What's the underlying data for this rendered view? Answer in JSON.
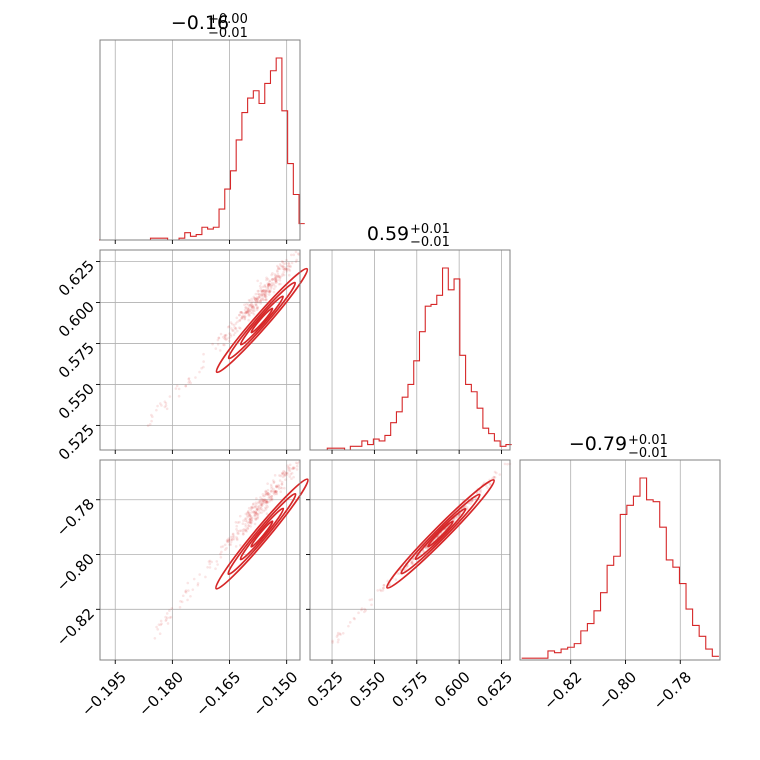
{
  "figure": {
    "type": "corner-plot",
    "color": "#d62728",
    "grid_color": "#b0b0b0",
    "axes_color": "#808080"
  },
  "chart_data": [
    {
      "type": "histogram",
      "panel": "p0",
      "title": {
        "main": "−0.16",
        "sup": "+0.00",
        "sub": "−0.01"
      },
      "xlim": [
        -0.199,
        -0.1465
      ],
      "x_ticks": [
        -0.195,
        -0.18,
        -0.165,
        -0.15
      ],
      "bins": [
        [
          -0.1985,
          0
        ],
        [
          -0.197,
          0
        ],
        [
          -0.1955,
          0
        ],
        [
          -0.194,
          0
        ],
        [
          -0.1925,
          0
        ],
        [
          -0.191,
          0
        ],
        [
          -0.1895,
          0
        ],
        [
          -0.188,
          0
        ],
        [
          -0.1865,
          0
        ],
        [
          -0.185,
          0.01
        ],
        [
          -0.1835,
          0.01
        ],
        [
          -0.182,
          0.01
        ],
        [
          -0.1805,
          0
        ],
        [
          -0.179,
          0
        ],
        [
          -0.1775,
          0.01
        ],
        [
          -0.176,
          0.04
        ],
        [
          -0.1745,
          0.02
        ],
        [
          -0.173,
          0.03
        ],
        [
          -0.1715,
          0.07
        ],
        [
          -0.17,
          0.06
        ],
        [
          -0.1685,
          0.07
        ],
        [
          -0.167,
          0.17
        ],
        [
          -0.1655,
          0.28
        ],
        [
          -0.164,
          0.38
        ],
        [
          -0.1625,
          0.55
        ],
        [
          -0.161,
          0.7
        ],
        [
          -0.1595,
          0.78
        ],
        [
          -0.158,
          0.82
        ],
        [
          -0.1565,
          0.75
        ],
        [
          -0.155,
          0.86
        ],
        [
          -0.1535,
          0.93
        ],
        [
          -0.152,
          1.0
        ],
        [
          -0.1505,
          0.71
        ],
        [
          -0.149,
          0.42
        ],
        [
          -0.1475,
          0.25
        ],
        [
          -0.146,
          0.09
        ]
      ]
    },
    {
      "type": "histogram",
      "panel": "p1",
      "title": {
        "main": "0.59",
        "sup": "+0.01",
        "sub": "−0.01"
      },
      "xlim": [
        0.512,
        0.63
      ],
      "x_ticks": [
        0.525,
        0.55,
        0.575,
        0.6,
        0.625
      ],
      "bins": [
        [
          0.5137,
          0
        ],
        [
          0.5171,
          0
        ],
        [
          0.5205,
          0
        ],
        [
          0.5239,
          0.01
        ],
        [
          0.5273,
          0.01
        ],
        [
          0.5307,
          0.01
        ],
        [
          0.5341,
          0
        ],
        [
          0.5375,
          0.02
        ],
        [
          0.5409,
          0.02
        ],
        [
          0.5443,
          0.05
        ],
        [
          0.5477,
          0.03
        ],
        [
          0.5511,
          0.06
        ],
        [
          0.5545,
          0.05
        ],
        [
          0.5579,
          0.08
        ],
        [
          0.5613,
          0.15
        ],
        [
          0.5647,
          0.21
        ],
        [
          0.5681,
          0.29
        ],
        [
          0.5715,
          0.36
        ],
        [
          0.5749,
          0.49
        ],
        [
          0.5783,
          0.65
        ],
        [
          0.5817,
          0.79
        ],
        [
          0.5851,
          0.8
        ],
        [
          0.5885,
          0.85
        ],
        [
          0.5919,
          1.0
        ],
        [
          0.5953,
          0.88
        ],
        [
          0.5987,
          0.94
        ],
        [
          0.6021,
          0.52
        ],
        [
          0.6055,
          0.36
        ],
        [
          0.6089,
          0.32
        ],
        [
          0.6123,
          0.23
        ],
        [
          0.6157,
          0.12
        ],
        [
          0.6191,
          0.09
        ],
        [
          0.6225,
          0.05
        ],
        [
          0.6259,
          0.02
        ],
        [
          0.6293,
          0.03
        ]
      ]
    },
    {
      "type": "histogram",
      "panel": "p2",
      "title": {
        "main": "−0.79",
        "sup": "+0.01",
        "sub": "−0.01"
      },
      "xlim": [
        -0.8385,
        -0.7655
      ],
      "x_ticks": [
        -0.82,
        -0.8,
        -0.78
      ],
      "bins": [
        [
          -0.8367,
          0.01
        ],
        [
          -0.8343,
          0.01
        ],
        [
          -0.8319,
          0.01
        ],
        [
          -0.8295,
          0.01
        ],
        [
          -0.8271,
          0.05
        ],
        [
          -0.8247,
          0.04
        ],
        [
          -0.8223,
          0.06
        ],
        [
          -0.8199,
          0.07
        ],
        [
          -0.8175,
          0.09
        ],
        [
          -0.8151,
          0.16
        ],
        [
          -0.8127,
          0.2
        ],
        [
          -0.8103,
          0.27
        ],
        [
          -0.8079,
          0.37
        ],
        [
          -0.8055,
          0.52
        ],
        [
          -0.8031,
          0.57
        ],
        [
          -0.8007,
          0.8
        ],
        [
          -0.7983,
          0.85
        ],
        [
          -0.7959,
          0.9
        ],
        [
          -0.7935,
          1.0
        ],
        [
          -0.7911,
          0.88
        ],
        [
          -0.7887,
          0.87
        ],
        [
          -0.7863,
          0.73
        ],
        [
          -0.7839,
          0.55
        ],
        [
          -0.7815,
          0.51
        ],
        [
          -0.7791,
          0.42
        ],
        [
          -0.7767,
          0.28
        ],
        [
          -0.7743,
          0.19
        ],
        [
          -0.7719,
          0.13
        ],
        [
          -0.7695,
          0.06
        ],
        [
          -0.7671,
          0.02
        ]
      ]
    },
    {
      "type": "scatter",
      "panel": "p10",
      "xlim": [
        -0.199,
        -0.1465
      ],
      "ylim": [
        0.51,
        0.632
      ],
      "x_ticks": [
        -0.195,
        -0.18,
        -0.165,
        -0.15
      ],
      "y_ticks": [
        0.525,
        0.55,
        0.575,
        0.6,
        0.625
      ],
      "trend": {
        "x": [
          -0.1865,
          -0.147
        ],
        "y": [
          0.525,
          0.63
        ]
      },
      "contour_center": [
        -0.1565,
        0.589
      ],
      "scatter_spread": 0.003
    },
    {
      "type": "scatter",
      "panel": "p20",
      "xlim": [
        -0.199,
        -0.1465
      ],
      "ylim": [
        -0.8385,
        -0.7655
      ],
      "x_ticks": [
        -0.195,
        -0.18,
        -0.165,
        -0.15
      ],
      "y_ticks": [
        -0.82,
        -0.8,
        -0.78
      ],
      "trend": {
        "x": [
          -0.1865,
          -0.1465
        ],
        "y": [
          -0.8315,
          -0.765
        ]
      },
      "contour_center": [
        -0.1565,
        -0.7925
      ],
      "scatter_spread": 0.002
    },
    {
      "type": "scatter",
      "panel": "p21",
      "xlim": [
        0.512,
        0.63
      ],
      "ylim": [
        -0.8385,
        -0.7655
      ],
      "x_ticks": [
        0.525,
        0.55,
        0.575,
        0.6,
        0.625
      ],
      "y_ticks": [
        -0.82,
        -0.8,
        -0.78
      ],
      "trend": {
        "x": [
          0.525,
          0.63
        ],
        "y": [
          -0.8315,
          -0.766
        ]
      },
      "contour_center": [
        0.589,
        -0.7925
      ],
      "scatter_spread": 0.0008
    }
  ]
}
